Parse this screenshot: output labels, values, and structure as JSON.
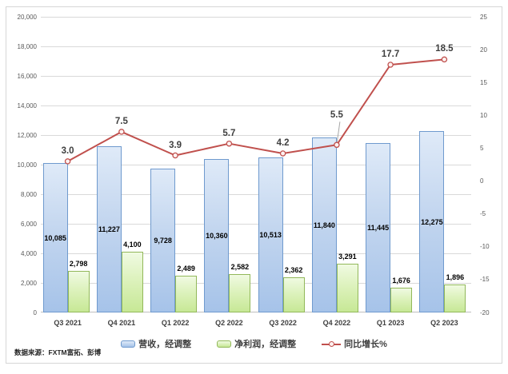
{
  "source_note": "数据来源：FXTM富拓、彭博",
  "chart_data": {
    "type": "bar",
    "subtype": "combo-bar-line-dual-axis",
    "categories": [
      "Q3 2021",
      "Q4 2021",
      "Q1 2022",
      "Q2 2022",
      "Q3 2022",
      "Q4 2022",
      "Q1 2023",
      "Q2 2023"
    ],
    "series": [
      {
        "name": "营收，经调整",
        "type": "bar",
        "axis": "left",
        "values": [
          10085,
          11227,
          9728,
          10360,
          10513,
          11840,
          11445,
          12275
        ],
        "labels": [
          "10,085",
          "11,227",
          "9,728",
          "10,360",
          "10,513",
          "11,840",
          "11,445",
          "12,275"
        ],
        "label_position": "inside-center"
      },
      {
        "name": "净利润，经调整",
        "type": "bar",
        "axis": "left",
        "values": [
          2798,
          4100,
          2489,
          2582,
          2362,
          3291,
          1676,
          1896
        ],
        "labels": [
          "2,798",
          "4,100",
          "2,489",
          "2,582",
          "2,362",
          "3,291",
          "1,676",
          "1,896"
        ],
        "label_position": "outside-end"
      },
      {
        "name": "同比增长%",
        "type": "line",
        "axis": "right",
        "values": [
          3.0,
          7.5,
          3.9,
          5.7,
          4.2,
          5.5,
          17.7,
          18.5
        ],
        "labels": [
          "3.0",
          "7.5",
          "3.9",
          "5.7",
          "4.2",
          "5.5",
          "17.7",
          "18.5"
        ],
        "label_position": "above",
        "label_offsets": [
          0,
          0,
          0,
          0,
          0,
          -24,
          0,
          0
        ]
      }
    ],
    "left_axis": {
      "min": 0,
      "max": 20000,
      "step": 2000,
      "tick_labels": [
        "0",
        "2,000",
        "4,000",
        "6,000",
        "8,000",
        "10,000",
        "12,000",
        "14,000",
        "16,000",
        "18,000",
        "20,000"
      ]
    },
    "right_axis": {
      "min": -20,
      "max": 25,
      "step": 5,
      "tick_labels": [
        "-20",
        "-15",
        "-10",
        "-5",
        "0",
        "5",
        "10",
        "15",
        "20",
        "25"
      ]
    },
    "grid": true,
    "legend_position": "bottom",
    "title": ""
  },
  "colors": {
    "revenue_fill_top": "#dfeaf8",
    "revenue_fill_bottom": "#a6c3e9",
    "revenue_border": "#6f9ace",
    "profit_fill_top": "#f0fae2",
    "profit_fill_bottom": "#c7e896",
    "profit_border": "#92b85a",
    "growth_line": "#c0504d",
    "gridline": "#d9d9d9",
    "axis_text": "#595959",
    "tick_text_bold": "#404040",
    "bar_label_text": "#000000"
  }
}
